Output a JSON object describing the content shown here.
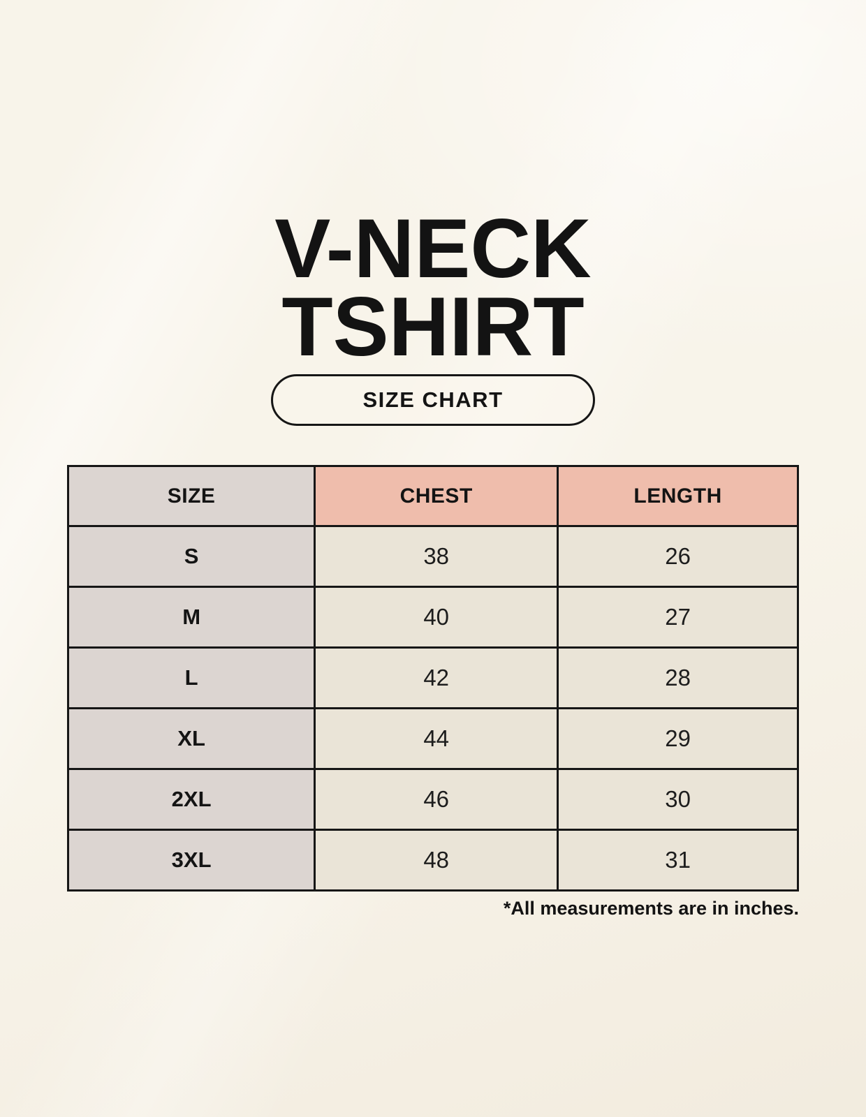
{
  "page": {
    "title_line1": "V-NECK",
    "title_line2": "TSHIRT",
    "badge_label": "SIZE CHART",
    "footnote": "*All measurements are in inches."
  },
  "colors": {
    "background": "#F8F4EA",
    "header_accent": "#EFBDAC",
    "size_column_bg": "#DCD5D1",
    "value_cell_bg": "#EAE4D7",
    "border": "#161616",
    "text": "#141414"
  },
  "chart_data": {
    "type": "table",
    "title": "V-NECK TSHIRT",
    "subtitle": "SIZE CHART",
    "columns": [
      "SIZE",
      "CHEST",
      "LENGTH"
    ],
    "rows": [
      [
        "S",
        "38",
        "26"
      ],
      [
        "M",
        "40",
        "27"
      ],
      [
        "L",
        "42",
        "28"
      ],
      [
        "XL",
        "44",
        "29"
      ],
      [
        "2XL",
        "46",
        "30"
      ],
      [
        "3XL",
        "48",
        "31"
      ]
    ],
    "units": "inches"
  }
}
